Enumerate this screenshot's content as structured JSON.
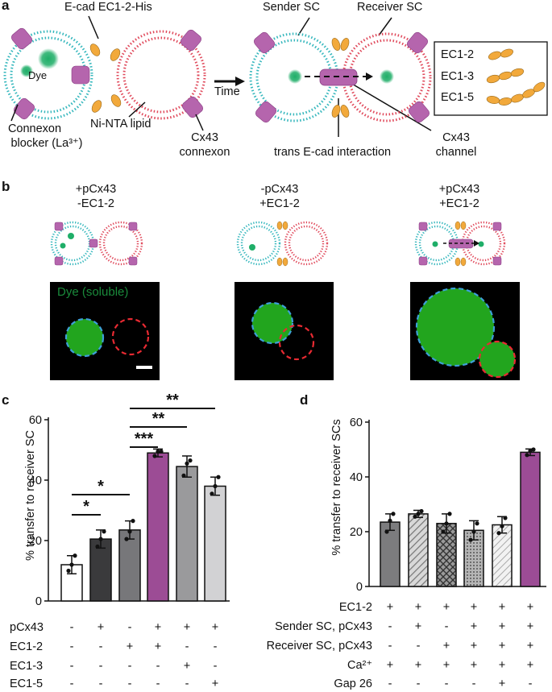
{
  "panel_a": {
    "letter": "a",
    "labels": {
      "ecad_his": "E-cad EC1-2-His",
      "dye": "Dye",
      "time": "Time",
      "sender": "Sender SC",
      "receiver": "Receiver SC",
      "connexon_blocker": "Connexon",
      "connexon_blocker_2": "blocker (La³⁺)",
      "ni_nta": "Ni-NTA lipid",
      "cx43_connexon": "Cx43",
      "cx43_connexon_2": "connexon",
      "trans": "trans E-cad interaction",
      "cx43_channel": "Cx43",
      "cx43_channel_2": "channel"
    },
    "legend": [
      "EC1-2",
      "EC1-3",
      "EC1-5"
    ]
  },
  "panel_b": {
    "letter": "b",
    "conditions": [
      {
        "line1": "+pCx43",
        "line2": "-EC1-2"
      },
      {
        "line1": "-pCx43",
        "line2": "+EC1-2"
      },
      {
        "line1": "+pCx43",
        "line2": "+EC1-2"
      }
    ],
    "dye_label": "Dye (soluble)"
  },
  "panel_c": {
    "letter": "c",
    "ylabel": "% transfer to receiver SC",
    "yticks": [
      "0",
      "20",
      "40",
      "60"
    ],
    "row_labels": [
      "pCx43",
      "EC1-2",
      "EC1-3",
      "EC1-5"
    ],
    "row_values": [
      [
        "-",
        "+",
        "-",
        "+",
        "+",
        "+"
      ],
      [
        "-",
        "-",
        "+",
        "+",
        "-",
        "-"
      ],
      [
        "-",
        "-",
        "-",
        "-",
        "+",
        "-"
      ],
      [
        "-",
        "-",
        "-",
        "-",
        "-",
        "+"
      ]
    ],
    "significance": [
      "*",
      "*",
      "***",
      "**",
      "**"
    ],
    "colors": [
      "#ffffff",
      "#3a3a3c",
      "#77777a",
      "#9c4c95",
      "#9a9a9c",
      "#d2d2d4"
    ]
  },
  "panel_d": {
    "letter": "d",
    "ylabel": "% transfer to receiver SCs",
    "yticks": [
      "0",
      "20",
      "40",
      "60"
    ],
    "row_labels": [
      "EC1-2",
      "Sender SC, pCx43",
      "Receiver SC, pCx43",
      "Ca²⁺",
      "Gap 26"
    ],
    "row_values": [
      [
        "+",
        "+",
        "+",
        "+",
        "+",
        "+"
      ],
      [
        "-",
        "+",
        "-",
        "+",
        "+",
        "+"
      ],
      [
        "-",
        "-",
        "+",
        "+",
        "+",
        "+"
      ],
      [
        "+",
        "+",
        "+",
        "+",
        "+",
        "+"
      ],
      [
        "-",
        "-",
        "-",
        "-",
        "+",
        "-"
      ]
    ]
  },
  "chart_data": [
    {
      "type": "bar",
      "ylabel": "% transfer to receiver SC",
      "ylim": [
        0,
        60
      ],
      "values": [
        12,
        20.5,
        23.5,
        49,
        44.5,
        38
      ],
      "error": [
        3,
        3,
        3,
        1.3,
        3.5,
        3
      ],
      "points": [
        [
          10,
          12,
          15
        ],
        [
          18,
          20.5,
          23
        ],
        [
          20.5,
          23,
          26.5
        ],
        [
          48,
          49.5,
          49.5
        ],
        [
          41.5,
          45.5,
          46.5
        ],
        [
          35.5,
          38,
          41
        ]
      ],
      "grid": false
    },
    {
      "type": "bar",
      "ylabel": "% transfer to receiver SCs",
      "ylim": [
        0,
        60
      ],
      "values": [
        23.5,
        26.5,
        23,
        20.5,
        22.5,
        49
      ],
      "error": [
        3,
        1.3,
        3.5,
        3.5,
        3,
        1.2
      ],
      "points": [
        [
          20,
          24,
          26.5
        ],
        [
          25.5,
          26.5,
          27.5
        ],
        [
          20,
          23,
          26.5
        ],
        [
          17,
          20,
          23
        ],
        [
          19.5,
          22,
          25
        ],
        [
          48,
          49.5,
          50
        ]
      ],
      "grid": false
    }
  ]
}
